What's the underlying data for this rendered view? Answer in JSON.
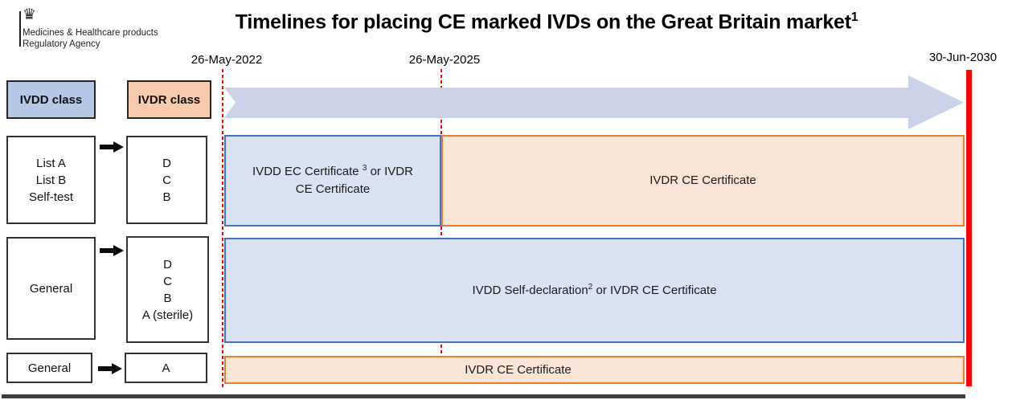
{
  "logo": {
    "crown_icon": "royal-crown",
    "org_line1": "Medicines & Healthcare products",
    "org_line2": "Regulatory Agency"
  },
  "title": {
    "text": "Timelines for placing CE marked IVDs on the Great Britain market",
    "sup": "1"
  },
  "timeline": {
    "dates": [
      {
        "label": "26-May-2022"
      },
      {
        "label": "26-May-2025"
      },
      {
        "label": "30-Jun-2030"
      }
    ]
  },
  "headers": {
    "ivdd": "IVDD class",
    "ivdr": "IVDR class"
  },
  "rows": [
    {
      "ivdd_lines": [
        "List A",
        "List B",
        "Self-test"
      ],
      "ivdr_lines": [
        "D",
        "C",
        "B"
      ],
      "bars": [
        {
          "pre": "IVDD EC Certificate ",
          "sup": "3",
          "post": " or IVDR CE Certificate",
          "style": "blue",
          "from": "26-May-2022",
          "to": "26-May-2025"
        },
        {
          "pre": "IVDR CE Certificate",
          "sup": "",
          "post": "",
          "style": "orange",
          "from": "26-May-2025",
          "to": "30-Jun-2030"
        }
      ]
    },
    {
      "ivdd_lines": [
        "General"
      ],
      "ivdr_lines": [
        "D",
        "C",
        "B",
        "A (sterile)"
      ],
      "bars": [
        {
          "pre": "IVDD Self-declaration",
          "sup": "2",
          "post": " or IVDR CE Certificate",
          "style": "blue",
          "from": "26-May-2022",
          "to": "30-Jun-2030"
        }
      ]
    },
    {
      "ivdd_lines": [
        "General"
      ],
      "ivdr_lines": [
        "A"
      ],
      "bars": [
        {
          "pre": "IVDR CE Certificate",
          "sup": "",
          "post": "",
          "style": "orange",
          "from": "26-May-2022",
          "to": "30-Jun-2030"
        }
      ]
    }
  ],
  "palette": {
    "header_blue": "#b4c7e7",
    "header_orange": "#f8cbad",
    "bar_blue_fill": "#dae3f3",
    "bar_blue_border": "#4472c4",
    "bar_orange_fill": "#fbe5d6",
    "bar_orange_border": "#ed7d31",
    "timeline_arrow": "#ccd3e9",
    "deadline_red": "#fe0000",
    "bottom_rule": "#3f3f3f"
  }
}
